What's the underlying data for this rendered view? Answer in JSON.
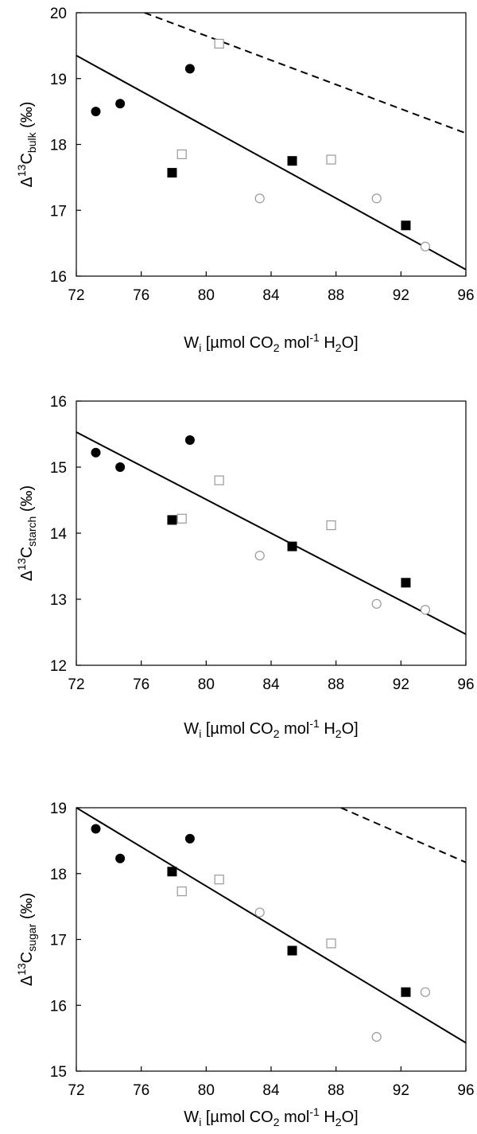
{
  "chart_data": [
    {
      "type": "scatter",
      "ylabel_parts": {
        "main": "Δ",
        "sup": "13",
        "base": "C",
        "sub": "bulk",
        "unit": " (‰)"
      },
      "xlabel_parts": {
        "w": "W",
        "wsub": "i",
        "t1": " [µmol CO",
        "s1": "2",
        "t2": " mol",
        "sup": "-1",
        "t3": " H",
        "s2": "2",
        "t4": "O]"
      },
      "xlim": [
        72,
        96
      ],
      "ylim": [
        16,
        20
      ],
      "xticks": [
        "72",
        "76",
        "80",
        "84",
        "88",
        "92",
        "96"
      ],
      "yticks": [
        "16",
        "17",
        "18",
        "19",
        "20"
      ],
      "series": [
        {
          "marker": "filled-circle",
          "points": [
            [
              73.2,
              18.5
            ],
            [
              74.7,
              18.62
            ],
            [
              79.0,
              19.15
            ]
          ]
        },
        {
          "marker": "filled-square",
          "points": [
            [
              77.9,
              17.57
            ],
            [
              85.3,
              17.75
            ],
            [
              92.3,
              16.77
            ]
          ]
        },
        {
          "marker": "open-square",
          "points": [
            [
              78.5,
              17.85
            ],
            [
              80.8,
              19.53
            ],
            [
              87.7,
              17.77
            ]
          ]
        },
        {
          "marker": "open-circle",
          "points": [
            [
              83.3,
              17.18
            ],
            [
              90.5,
              17.18
            ],
            [
              93.5,
              16.45
            ]
          ]
        }
      ],
      "lines": [
        {
          "style": "solid",
          "x": [
            72,
            96
          ],
          "y": [
            19.35,
            16.1
          ]
        },
        {
          "style": "dashed",
          "x": [
            76.2,
            96
          ],
          "y": [
            20.0,
            18.17
          ]
        }
      ]
    },
    {
      "type": "scatter",
      "ylabel_parts": {
        "main": "Δ",
        "sup": "13",
        "base": "C",
        "sub": "starch",
        "unit": " (‰)"
      },
      "xlabel_parts": {
        "w": "W",
        "wsub": "i",
        "t1": " [µmol CO",
        "s1": "2",
        "t2": " mol",
        "sup": "-1",
        "t3": " H",
        "s2": "2",
        "t4": "O]"
      },
      "xlim": [
        72,
        96
      ],
      "ylim": [
        12,
        16
      ],
      "xticks": [
        "72",
        "76",
        "80",
        "84",
        "88",
        "92",
        "96"
      ],
      "yticks": [
        "12",
        "13",
        "14",
        "15",
        "16"
      ],
      "series": [
        {
          "marker": "filled-circle",
          "points": [
            [
              73.2,
              15.22
            ],
            [
              74.7,
              15.0
            ],
            [
              79.0,
              15.41
            ]
          ]
        },
        {
          "marker": "filled-square",
          "points": [
            [
              77.9,
              14.2
            ],
            [
              85.3,
              13.8
            ],
            [
              92.3,
              13.25
            ]
          ]
        },
        {
          "marker": "open-square",
          "points": [
            [
              78.5,
              14.22
            ],
            [
              80.8,
              14.8
            ],
            [
              87.7,
              14.12
            ]
          ]
        },
        {
          "marker": "open-circle",
          "points": [
            [
              83.3,
              13.66
            ],
            [
              90.5,
              12.93
            ],
            [
              93.5,
              12.84
            ]
          ]
        }
      ],
      "lines": [
        {
          "style": "solid",
          "x": [
            72,
            96
          ],
          "y": [
            15.53,
            12.47
          ]
        }
      ]
    },
    {
      "type": "scatter",
      "ylabel_parts": {
        "main": "Δ",
        "sup": "13",
        "base": "C",
        "sub": "sugar",
        "unit": " (‰)"
      },
      "xlabel_parts": {
        "w": "W",
        "wsub": "i",
        "t1": " [µmol CO",
        "s1": "2",
        "t2": " mol",
        "sup": "-1",
        "t3": " H",
        "s2": "2",
        "t4": "O]"
      },
      "xlim": [
        72,
        96
      ],
      "ylim": [
        15,
        19
      ],
      "xticks": [
        "72",
        "76",
        "80",
        "84",
        "88",
        "92",
        "96"
      ],
      "yticks": [
        "15",
        "16",
        "17",
        "18",
        "19"
      ],
      "series": [
        {
          "marker": "filled-circle",
          "points": [
            [
              73.2,
              18.68
            ],
            [
              74.7,
              18.23
            ],
            [
              79.0,
              18.53
            ]
          ]
        },
        {
          "marker": "filled-square",
          "points": [
            [
              77.9,
              18.03
            ],
            [
              85.3,
              16.83
            ],
            [
              92.3,
              16.2
            ]
          ]
        },
        {
          "marker": "open-square",
          "points": [
            [
              78.5,
              17.73
            ],
            [
              80.8,
              17.91
            ],
            [
              87.7,
              16.94
            ]
          ]
        },
        {
          "marker": "open-circle",
          "points": [
            [
              83.3,
              17.41
            ],
            [
              90.5,
              15.52
            ],
            [
              93.5,
              16.2
            ]
          ]
        }
      ],
      "lines": [
        {
          "style": "solid",
          "x": [
            72,
            96
          ],
          "y": [
            19.0,
            15.43
          ]
        },
        {
          "style": "dashed",
          "x": [
            88.3,
            96
          ],
          "y": [
            19.0,
            18.17
          ]
        }
      ]
    }
  ]
}
